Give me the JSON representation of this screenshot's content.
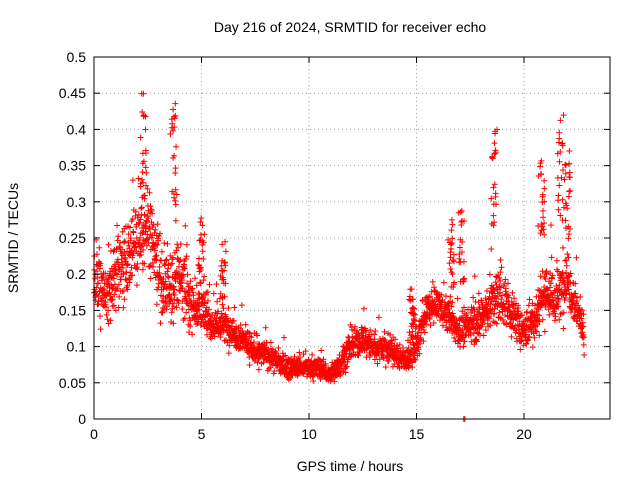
{
  "chart_data": {
    "type": "scatter",
    "title": "Day 216 of 2024, SRMTID for receiver echo",
    "xlabel": "GPS time / hours",
    "ylabel": "SRMTID / TECUs",
    "xlim": [
      0,
      24
    ],
    "ylim": [
      0,
      0.5
    ],
    "xticks": [
      0,
      5,
      10,
      15,
      20
    ],
    "yticks": [
      0,
      0.05,
      0.1,
      0.15,
      0.2,
      0.25,
      0.3,
      0.35,
      0.4,
      0.45,
      0.5
    ],
    "xtick_labels": [
      "0",
      "5",
      "10",
      "15",
      "20"
    ],
    "ytick_labels": [
      "0",
      "0.05",
      "0.1",
      "0.15",
      "0.2",
      "0.25",
      "0.3",
      "0.35",
      "0.4",
      "0.45",
      "0.5"
    ],
    "grid": true,
    "marker": "+",
    "series": [
      {
        "name": "SRMTID",
        "color": "#ff0000",
        "profile": {
          "x": [
            0,
            0.5,
            1,
            1.5,
            2,
            2.5,
            3,
            3.5,
            4,
            4.5,
            5,
            5.5,
            6,
            6.5,
            7,
            7.5,
            8,
            8.5,
            9,
            9.5,
            10,
            10.5,
            11,
            11.5,
            12,
            12.5,
            13,
            13.5,
            14,
            14.5,
            15,
            15.5,
            16,
            16.5,
            17,
            17.5,
            18,
            18.5,
            19,
            19.5,
            20,
            20.5,
            21,
            21.5,
            22,
            22.5,
            22.8
          ],
          "center": [
            0.19,
            0.17,
            0.2,
            0.22,
            0.25,
            0.26,
            0.2,
            0.17,
            0.2,
            0.16,
            0.15,
            0.13,
            0.13,
            0.12,
            0.11,
            0.09,
            0.09,
            0.08,
            0.07,
            0.07,
            0.07,
            0.07,
            0.06,
            0.08,
            0.1,
            0.11,
            0.1,
            0.1,
            0.09,
            0.08,
            0.1,
            0.15,
            0.16,
            0.14,
            0.12,
            0.13,
            0.14,
            0.16,
            0.17,
            0.14,
            0.12,
            0.14,
            0.18,
            0.16,
            0.2,
            0.15,
            0.12
          ],
          "spread": [
            0.08,
            0.07,
            0.08,
            0.09,
            0.1,
            0.11,
            0.09,
            0.08,
            0.1,
            0.06,
            0.05,
            0.04,
            0.04,
            0.04,
            0.035,
            0.03,
            0.03,
            0.03,
            0.025,
            0.025,
            0.025,
            0.025,
            0.025,
            0.03,
            0.035,
            0.04,
            0.035,
            0.04,
            0.035,
            0.03,
            0.04,
            0.04,
            0.04,
            0.04,
            0.04,
            0.04,
            0.05,
            0.07,
            0.07,
            0.05,
            0.04,
            0.06,
            0.08,
            0.06,
            0.08,
            0.05,
            0.04
          ]
        },
        "peaks": [
          {
            "x": 2.3,
            "y": 0.45
          },
          {
            "x": 3.7,
            "y": 0.45
          },
          {
            "x": 5.0,
            "y": 0.29
          },
          {
            "x": 6.0,
            "y": 0.25
          },
          {
            "x": 14.8,
            "y": 0.18
          },
          {
            "x": 16.6,
            "y": 0.28
          },
          {
            "x": 17.1,
            "y": 0.29
          },
          {
            "x": 18.6,
            "y": 0.4
          },
          {
            "x": 20.8,
            "y": 0.36
          },
          {
            "x": 21.7,
            "y": 0.42
          },
          {
            "x": 22.0,
            "y": 0.38
          }
        ],
        "outliers": [
          {
            "x": 17.2,
            "y": 0.0
          },
          {
            "x": 17.25,
            "y": 0.0
          }
        ]
      }
    ]
  }
}
